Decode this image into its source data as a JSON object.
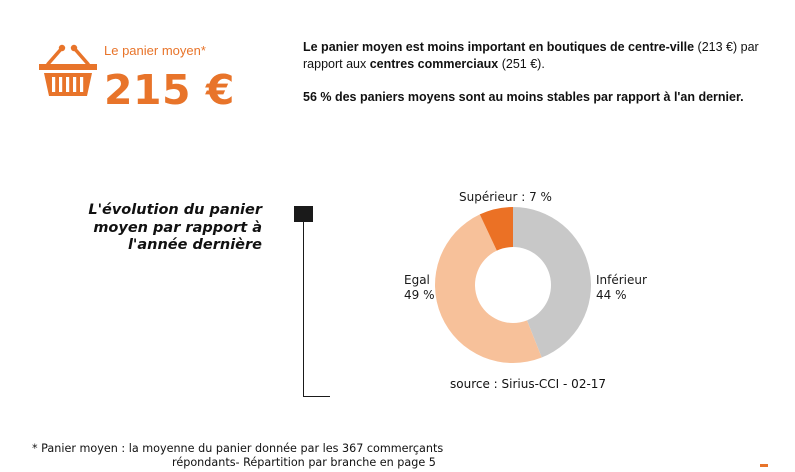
{
  "kpi": {
    "label": "Le panier moyen*",
    "value": "215 €",
    "icon": "shopping-basket-icon",
    "accent_color": "#e8742a"
  },
  "summary": {
    "p1_bold_1": "Le panier moyen est moins important en boutiques de centre-ville",
    "p1_text_1": " (213 €) par rapport aux ",
    "p1_bold_2": "centres commerciaux",
    "p1_text_2": " (251 €).",
    "p2_bold": "56 % des paniers moyens sont au moins stables par rapport à l'an dernier."
  },
  "chart_title": "L'évolution du panier moyen par rapport à l'année dernière",
  "chart_data": {
    "type": "pie",
    "donut": true,
    "slices": [
      {
        "name": "Inférieur",
        "value": 44,
        "label": "44 %",
        "color": "#c8c8c8"
      },
      {
        "name": "Egal",
        "value": 49,
        "label": "49 %",
        "color": "#f7c19a"
      },
      {
        "name": "Supérieur",
        "value": 7,
        "label": "Supérieur : 7 %",
        "color": "#eb7125"
      }
    ],
    "labels": {
      "sup": "Supérieur : 7 %",
      "egal_name": "Egal",
      "egal_value": "49 %",
      "inf_name": "Inférieur",
      "inf_value": "44 %"
    },
    "source": "source : Sirius-CCI - 02-17"
  },
  "footnote": {
    "line1": "* Panier moyen : la moyenne du panier donnée par les 367 commerçants",
    "line2": "répondants- Répartition par branche en page 5"
  }
}
